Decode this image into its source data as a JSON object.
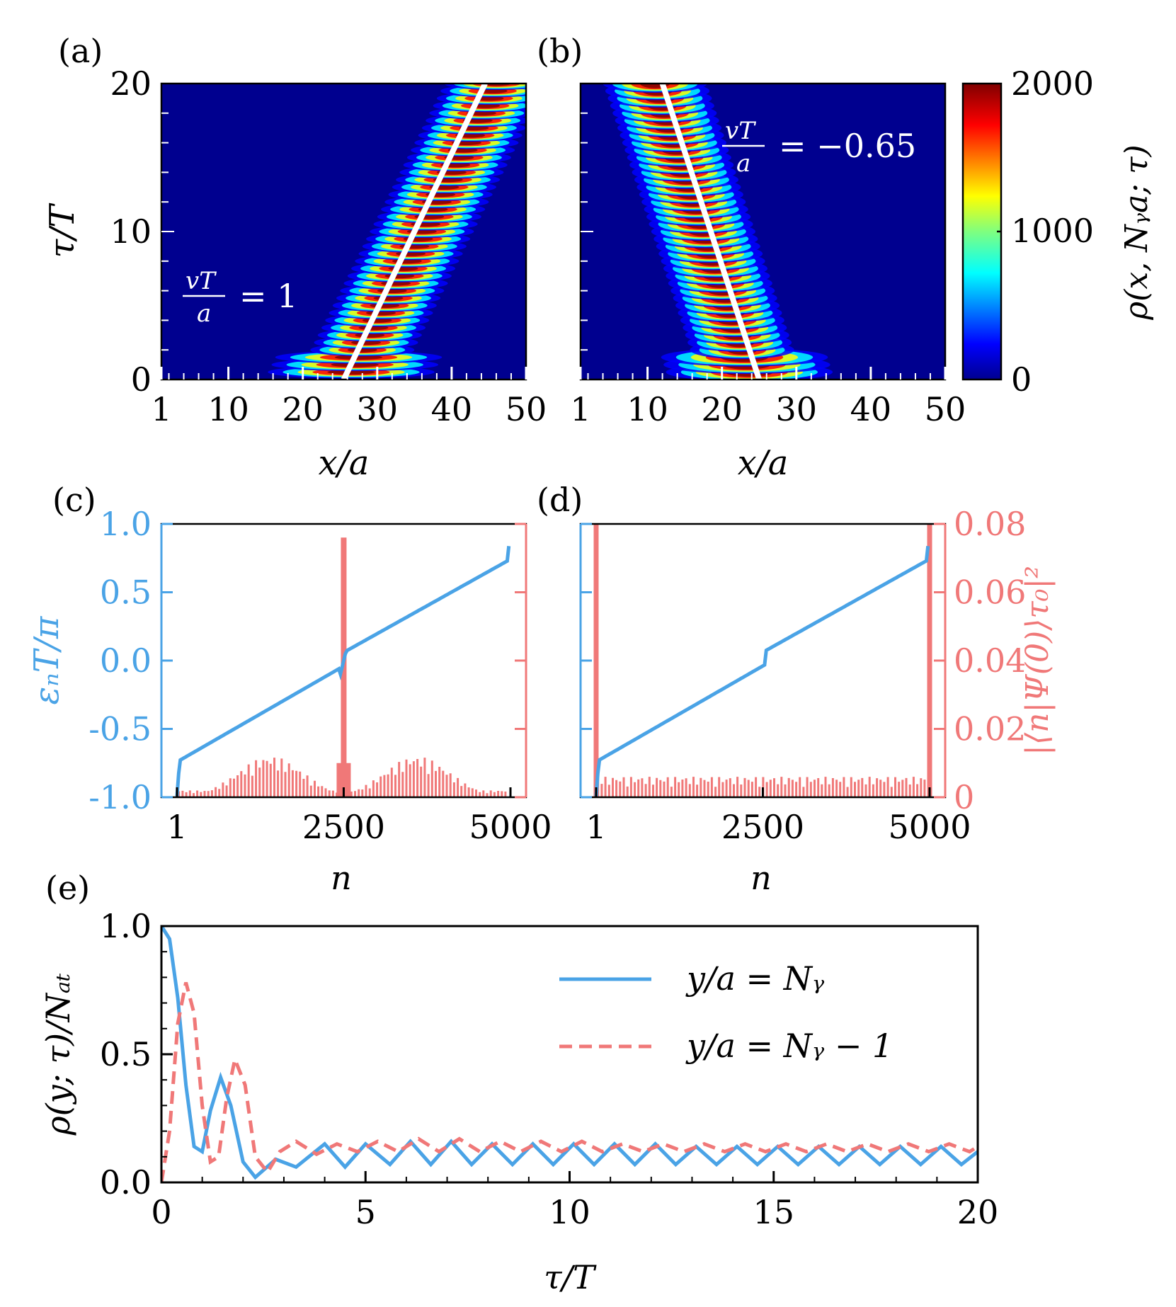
{
  "colors": {
    "blue": "#4aa3e6",
    "red": "#f07878",
    "white_line": "#ffffff",
    "background_low": "#00008f"
  },
  "panels": {
    "a": {
      "tag": "(a)",
      "annotation_frac_num": "vT",
      "annotation_frac_den": "a",
      "annotation_value": "= 1"
    },
    "b": {
      "tag": "(b)",
      "annotation_frac_num": "vT",
      "annotation_frac_den": "a",
      "annotation_value": "= −0.65"
    },
    "c": {
      "tag": "(c)"
    },
    "d": {
      "tag": "(d)"
    },
    "e": {
      "tag": "(e)"
    }
  },
  "colorbar": {
    "label": "ρ(x, Nᵧa; τ)",
    "ticks": [
      "0",
      "1000",
      "2000"
    ],
    "range": [
      0,
      2000
    ]
  },
  "chart_data": [
    {
      "id": "a",
      "type": "heatmap",
      "xlabel": "x/a",
      "ylabel": "τ/T",
      "xticks": [
        "1",
        "10",
        "20",
        "30",
        "40",
        "50"
      ],
      "yticks": [
        "0",
        "10",
        "20"
      ],
      "xlim": [
        1,
        50
      ],
      "ylim": [
        0,
        20
      ],
      "center_start": 26,
      "velocity": 1,
      "fit_line": {
        "x": [
          25.5,
          44.5
        ],
        "y": [
          0,
          20
        ]
      }
    },
    {
      "id": "b",
      "type": "heatmap",
      "xlabel": "x/a",
      "xticks": [
        "1",
        "10",
        "20",
        "30",
        "40",
        "50"
      ],
      "xlim": [
        1,
        50
      ],
      "ylim": [
        0,
        20
      ],
      "center_start": 24,
      "velocity": -0.65,
      "fit_line": {
        "x": [
          25,
          12
        ],
        "y": [
          0,
          20
        ]
      }
    },
    {
      "id": "c",
      "type": "line",
      "xlabel": "n",
      "ylabel_left": "εₙT/π",
      "xticks": [
        "1",
        "2500",
        "5000"
      ],
      "yticks_left": [
        "-1.0",
        "-0.5",
        "0.0",
        "0.5",
        "1.0"
      ],
      "xlim": [
        1,
        5000
      ],
      "ylim_left": [
        -1,
        1
      ],
      "ylim_right": [
        0,
        0.08
      ],
      "quasienergy_gap_at": 2500,
      "overlap_peak": {
        "n": 2500,
        "value": 0.076
      }
    },
    {
      "id": "d",
      "type": "line",
      "xlabel": "n",
      "ylabel_right": "|⟨n|Ψ(0)⟩τ₀|²",
      "xticks": [
        "1",
        "2500",
        "5000"
      ],
      "yticks_right": [
        "0",
        "0.02",
        "0.04",
        "0.06",
        "0.08"
      ],
      "xlim": [
        1,
        5000
      ],
      "ylim_left": [
        -1,
        1
      ],
      "ylim_right": [
        0,
        0.08
      ],
      "overlap_edge_peaks": [
        {
          "n": 1,
          "value": 0.08
        },
        {
          "n": 5000,
          "value": 0.08
        }
      ]
    },
    {
      "id": "e",
      "type": "line",
      "xlabel": "τ/T",
      "ylabel": "ρ(y; τ)/Nₐₜ",
      "xticks": [
        "0",
        "5",
        "10",
        "15",
        "20"
      ],
      "yticks": [
        "0.0",
        "0.5",
        "1.0"
      ],
      "xlim": [
        0,
        20
      ],
      "ylim": [
        0,
        1
      ],
      "legend_position": "top-right",
      "series": [
        {
          "name": "y/a = Nᵧ",
          "style": "solid",
          "color": "#4aa3e6",
          "x": [
            0,
            0.2,
            0.4,
            0.6,
            0.8,
            1.0,
            1.2,
            1.45,
            1.7,
            2.0,
            2.3,
            2.8,
            3.3,
            4.0,
            4.5,
            5.0,
            5.6,
            6.1,
            6.6,
            7.1,
            7.6,
            8.1,
            8.6,
            9.1,
            9.6,
            10.1,
            10.6,
            11.1,
            11.6,
            12.1,
            12.6,
            13.1,
            13.6,
            14.1,
            14.6,
            15.1,
            15.6,
            16.1,
            16.6,
            17.1,
            17.6,
            18.1,
            18.6,
            19.1,
            19.6,
            20.0
          ],
          "y": [
            1.0,
            0.95,
            0.72,
            0.38,
            0.14,
            0.12,
            0.28,
            0.41,
            0.3,
            0.08,
            0.02,
            0.09,
            0.06,
            0.15,
            0.06,
            0.15,
            0.07,
            0.16,
            0.07,
            0.16,
            0.07,
            0.15,
            0.07,
            0.15,
            0.07,
            0.15,
            0.07,
            0.15,
            0.07,
            0.15,
            0.07,
            0.14,
            0.07,
            0.14,
            0.07,
            0.14,
            0.07,
            0.14,
            0.07,
            0.14,
            0.07,
            0.14,
            0.07,
            0.14,
            0.07,
            0.12
          ]
        },
        {
          "name": "y/a = Nᵧ − 1",
          "style": "dashed",
          "color": "#f07878",
          "x": [
            0,
            0.2,
            0.4,
            0.6,
            0.8,
            1.0,
            1.2,
            1.4,
            1.6,
            1.8,
            2.05,
            2.3,
            2.6,
            2.9,
            3.3,
            3.8,
            4.3,
            4.8,
            5.3,
            5.8,
            6.3,
            6.8,
            7.3,
            7.8,
            8.3,
            8.8,
            9.3,
            9.8,
            10.3,
            10.8,
            11.3,
            11.8,
            12.3,
            12.8,
            13.3,
            13.8,
            14.3,
            14.8,
            15.3,
            15.8,
            16.3,
            16.8,
            17.3,
            17.8,
            18.3,
            18.8,
            19.3,
            19.8,
            20.0
          ],
          "y": [
            0,
            0.2,
            0.62,
            0.78,
            0.66,
            0.3,
            0.08,
            0.1,
            0.33,
            0.48,
            0.38,
            0.1,
            0.04,
            0.12,
            0.16,
            0.11,
            0.15,
            0.12,
            0.16,
            0.12,
            0.17,
            0.12,
            0.17,
            0.12,
            0.16,
            0.12,
            0.16,
            0.12,
            0.16,
            0.12,
            0.15,
            0.12,
            0.15,
            0.12,
            0.15,
            0.12,
            0.15,
            0.12,
            0.15,
            0.12,
            0.15,
            0.12,
            0.15,
            0.12,
            0.15,
            0.12,
            0.15,
            0.12,
            0.14
          ]
        }
      ]
    }
  ]
}
